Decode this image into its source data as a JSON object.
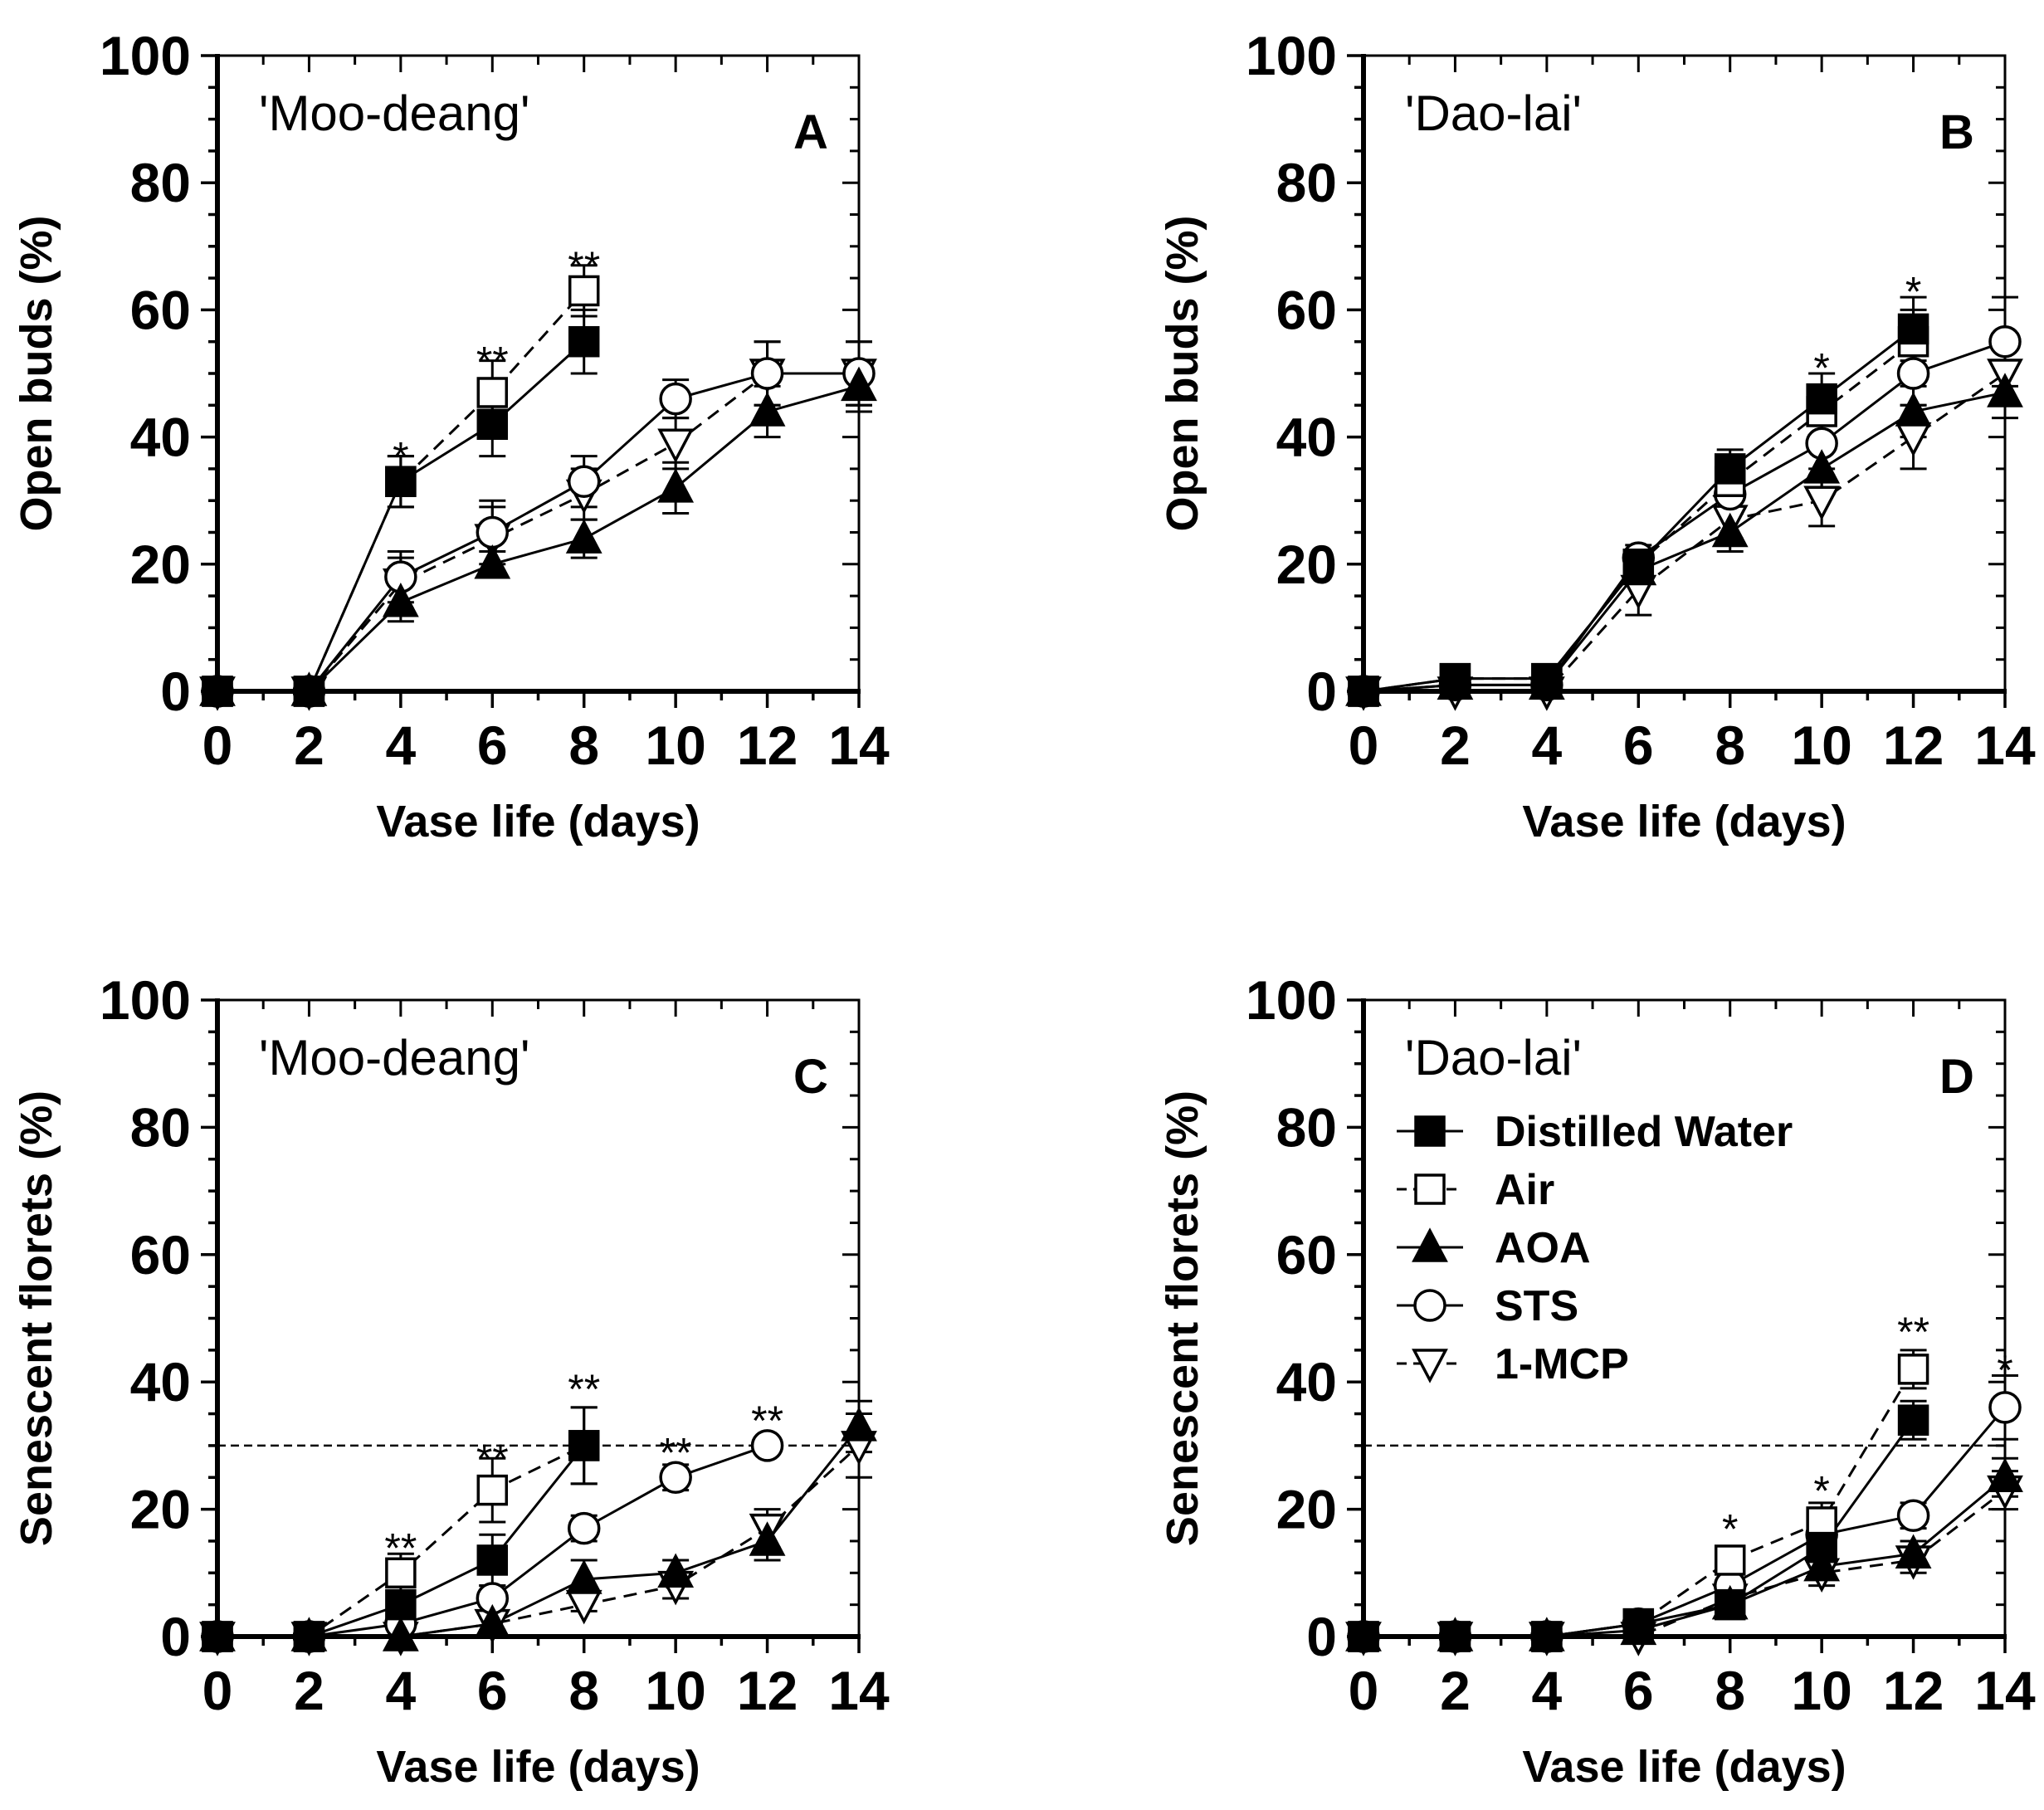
{
  "figure": {
    "x_label": "Vase life (days)",
    "y_label_top": "Open buds (%)",
    "y_label_bottom": "Senescent florets (%)",
    "x_ticks": [
      "0",
      "2",
      "4",
      "6",
      "8",
      "10",
      "12",
      "14"
    ],
    "y_ticks": [
      "0",
      "20",
      "40",
      "60",
      "80",
      "100"
    ]
  },
  "legend": {
    "items": [
      {
        "label": "Distilled Water",
        "marker": "square-filled",
        "line": "solid"
      },
      {
        "label": "Air",
        "marker": "square-open",
        "line": "dashed"
      },
      {
        "label": "AOA",
        "marker": "triangle-up-filled",
        "line": "solid"
      },
      {
        "label": "STS",
        "marker": "circle-open",
        "line": "solid"
      },
      {
        "label": "1-MCP",
        "marker": "triangle-down-open",
        "line": "dashed"
      }
    ]
  },
  "chart_data": [
    {
      "panel": "A",
      "type": "line",
      "cultivar": "'Moo-deang'",
      "xlabel": "Vase life (days)",
      "ylabel": "Open buds (%)",
      "xlim": [
        0,
        14
      ],
      "ylim": [
        0,
        100
      ],
      "threshold": null,
      "series": [
        {
          "name": "Distilled Water",
          "x": [
            0,
            2,
            4,
            6,
            8
          ],
          "y": [
            0,
            0,
            33,
            42,
            55
          ],
          "err": [
            0,
            0,
            4,
            5,
            5
          ]
        },
        {
          "name": "Air",
          "x": [
            0,
            2,
            4,
            6,
            8
          ],
          "y": [
            0,
            0,
            33,
            47,
            63
          ],
          "err": [
            0,
            0,
            4,
            5,
            4
          ]
        },
        {
          "name": "AOA",
          "x": [
            0,
            2,
            4,
            6,
            8,
            10,
            12,
            14
          ],
          "y": [
            0,
            0,
            14,
            20,
            24,
            32,
            44,
            48
          ],
          "err": [
            0,
            0,
            3,
            2,
            3,
            4,
            4,
            4
          ]
        },
        {
          "name": "STS",
          "x": [
            0,
            2,
            4,
            6,
            8,
            10,
            12,
            14
          ],
          "y": [
            0,
            0,
            18,
            25,
            33,
            46,
            50,
            50
          ],
          "err": [
            0,
            0,
            4,
            5,
            4,
            3,
            5,
            5
          ]
        },
        {
          "name": "1-MCP",
          "x": [
            0,
            2,
            4,
            6,
            8,
            10,
            12,
            14
          ],
          "y": [
            0,
            0,
            17,
            24,
            31,
            39,
            50,
            50
          ],
          "err": [
            0,
            0,
            4,
            5,
            4,
            4,
            5,
            5
          ]
        }
      ],
      "annotations": [
        {
          "x": 4,
          "y": 37,
          "text": "*"
        },
        {
          "x": 6,
          "y": 52,
          "text": "**"
        },
        {
          "x": 8,
          "y": 67,
          "text": "**"
        }
      ]
    },
    {
      "panel": "B",
      "type": "line",
      "cultivar": "'Dao-lai'",
      "xlabel": "Vase life (days)",
      "ylabel": "Open buds (%)",
      "xlim": [
        0,
        14
      ],
      "ylim": [
        0,
        100
      ],
      "threshold": null,
      "series": [
        {
          "name": "Distilled Water",
          "x": [
            0,
            2,
            4,
            6,
            8,
            10,
            12
          ],
          "y": [
            0,
            2,
            2,
            20,
            35,
            46,
            57
          ],
          "err": [
            0,
            1,
            1,
            2,
            3,
            4,
            5
          ]
        },
        {
          "name": "Air",
          "x": [
            0,
            2,
            4,
            6,
            8,
            10,
            12
          ],
          "y": [
            0,
            2,
            2,
            20,
            33,
            44,
            55
          ],
          "err": [
            0,
            1,
            1,
            2,
            3,
            4,
            5
          ]
        },
        {
          "name": "AOA",
          "x": [
            0,
            2,
            4,
            6,
            8,
            10,
            12,
            14
          ],
          "y": [
            0,
            1,
            1,
            19,
            25,
            35,
            44,
            47
          ],
          "err": [
            0,
            1,
            1,
            2,
            3,
            4,
            4,
            4
          ]
        },
        {
          "name": "STS",
          "x": [
            0,
            2,
            4,
            6,
            8,
            10,
            12,
            14
          ],
          "y": [
            0,
            1,
            1,
            21,
            31,
            39,
            50,
            55
          ],
          "err": [
            0,
            1,
            1,
            2,
            3,
            4,
            5,
            7
          ]
        },
        {
          "name": "1-MCP",
          "x": [
            0,
            2,
            4,
            6,
            8,
            10,
            12,
            14
          ],
          "y": [
            0,
            0,
            0,
            16,
            27,
            30,
            40,
            50
          ],
          "err": [
            0,
            1,
            1,
            4,
            3,
            4,
            5,
            5
          ]
        }
      ],
      "annotations": [
        {
          "x": 10,
          "y": 51,
          "text": "*"
        },
        {
          "x": 12,
          "y": 63,
          "text": "*"
        }
      ]
    },
    {
      "panel": "C",
      "type": "line",
      "cultivar": "'Moo-deang'",
      "xlabel": "Vase life (days)",
      "ylabel": "Senescent florets (%)",
      "xlim": [
        0,
        14
      ],
      "ylim": [
        0,
        100
      ],
      "threshold": 30,
      "series": [
        {
          "name": "Distilled Water",
          "x": [
            0,
            2,
            4,
            6,
            8
          ],
          "y": [
            0,
            0,
            5,
            12,
            30
          ],
          "err": [
            0,
            0,
            2,
            4,
            6
          ]
        },
        {
          "name": "Air",
          "x": [
            0,
            2,
            4,
            6,
            8
          ],
          "y": [
            0,
            0,
            10,
            23,
            30
          ],
          "err": [
            0,
            0,
            3,
            5,
            6
          ]
        },
        {
          "name": "AOA",
          "x": [
            0,
            2,
            4,
            6,
            8,
            10,
            12,
            14
          ],
          "y": [
            0,
            0,
            0,
            2,
            9,
            10,
            15,
            33
          ],
          "err": [
            0,
            0,
            0,
            1,
            3,
            2,
            3,
            4
          ]
        },
        {
          "name": "STS",
          "x": [
            0,
            2,
            4,
            6,
            8,
            10,
            12
          ],
          "y": [
            0,
            0,
            2,
            6,
            17,
            25,
            30
          ],
          "err": [
            0,
            0,
            1,
            2,
            2,
            2,
            1
          ]
        },
        {
          "name": "1-MCP",
          "x": [
            0,
            2,
            4,
            6,
            8,
            10,
            12,
            14
          ],
          "y": [
            0,
            0,
            0,
            2,
            5,
            8,
            17,
            30
          ],
          "err": [
            0,
            0,
            0,
            1,
            1,
            2,
            3,
            5
          ]
        }
      ],
      "annotations": [
        {
          "x": 4,
          "y": 14,
          "text": "**"
        },
        {
          "x": 6,
          "y": 28,
          "text": "**"
        },
        {
          "x": 8,
          "y": 39,
          "text": "**"
        },
        {
          "x": 10,
          "y": 29,
          "text": "**"
        },
        {
          "x": 12,
          "y": 34,
          "text": "**"
        }
      ]
    },
    {
      "panel": "D",
      "type": "line",
      "cultivar": "'Dao-lai'",
      "xlabel": "Vase life (days)",
      "ylabel": "Senescent florets (%)",
      "xlim": [
        0,
        14
      ],
      "ylim": [
        0,
        100
      ],
      "threshold": 30,
      "series": [
        {
          "name": "Distilled Water",
          "x": [
            0,
            2,
            4,
            6,
            8,
            10,
            12
          ],
          "y": [
            0,
            0,
            0,
            2,
            5,
            14,
            34
          ],
          "err": [
            0,
            0,
            0,
            1,
            1,
            2,
            3
          ]
        },
        {
          "name": "Air",
          "x": [
            0,
            2,
            4,
            6,
            8,
            10,
            12
          ],
          "y": [
            0,
            0,
            0,
            2,
            12,
            18,
            42
          ],
          "err": [
            0,
            0,
            0,
            1,
            2,
            3,
            3
          ]
        },
        {
          "name": "AOA",
          "x": [
            0,
            2,
            4,
            6,
            8,
            10,
            12,
            14
          ],
          "y": [
            0,
            0,
            0,
            1,
            5,
            11,
            13,
            25
          ],
          "err": [
            0,
            0,
            0,
            1,
            1,
            2,
            2,
            3
          ]
        },
        {
          "name": "STS",
          "x": [
            0,
            2,
            4,
            6,
            8,
            10,
            12,
            14
          ],
          "y": [
            0,
            0,
            0,
            2,
            8,
            16,
            19,
            36
          ],
          "err": [
            0,
            0,
            0,
            1,
            2,
            3,
            2,
            5
          ]
        },
        {
          "name": "1-MCP",
          "x": [
            0,
            2,
            4,
            6,
            8,
            10,
            12,
            14
          ],
          "y": [
            0,
            0,
            0,
            0,
            6,
            10,
            12,
            23
          ],
          "err": [
            0,
            0,
            0,
            1,
            1,
            2,
            2,
            3
          ]
        }
      ],
      "annotations": [
        {
          "x": 8,
          "y": 17,
          "text": "*"
        },
        {
          "x": 10,
          "y": 23,
          "text": "*"
        },
        {
          "x": 12,
          "y": 48,
          "text": "**"
        },
        {
          "x": 14,
          "y": 42,
          "text": "*"
        }
      ]
    }
  ]
}
